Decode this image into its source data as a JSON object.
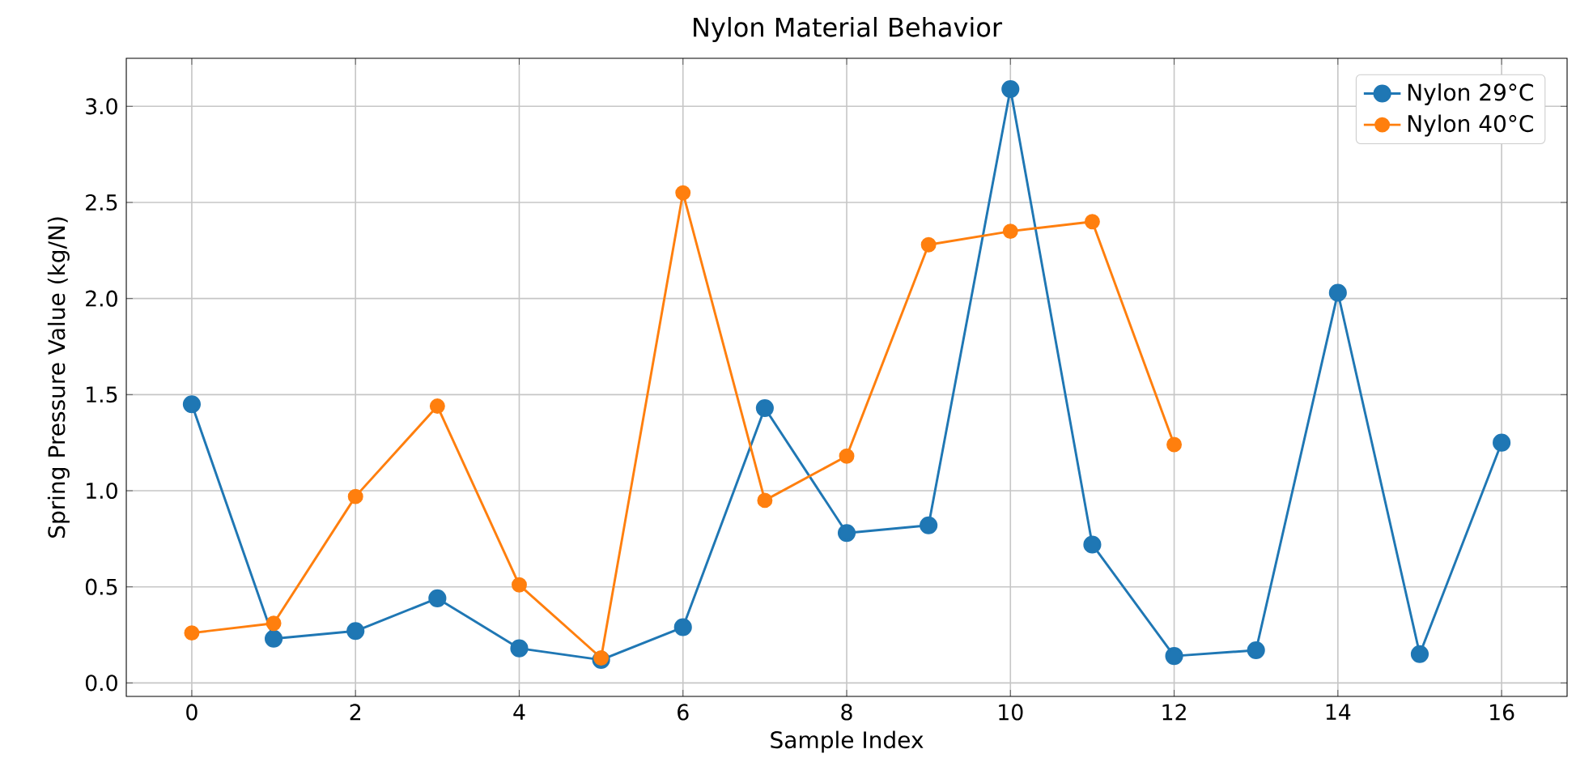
{
  "chart_data": {
    "type": "line",
    "title": "Nylon Material Behavior",
    "xlabel": "Sample Index",
    "ylabel": "Spring Pressure Value (kg/N)",
    "series": [
      {
        "name": "Nylon 29°C",
        "color": "#1f77b4",
        "x": [
          0,
          1,
          2,
          3,
          4,
          5,
          6,
          7,
          8,
          9,
          10,
          11,
          12,
          13,
          14,
          15,
          16
        ],
        "values": [
          1.45,
          0.23,
          0.27,
          0.44,
          0.18,
          0.12,
          0.29,
          1.43,
          0.78,
          0.82,
          3.09,
          0.72,
          0.14,
          0.17,
          2.03,
          0.15,
          1.25
        ]
      },
      {
        "name": "Nylon 40°C",
        "color": "#ff7f0e",
        "x": [
          0,
          1,
          2,
          3,
          4,
          5,
          6,
          7,
          8,
          9,
          10,
          11,
          12
        ],
        "values": [
          0.26,
          0.31,
          0.97,
          1.44,
          0.51,
          0.13,
          2.55,
          0.95,
          1.18,
          2.28,
          2.35,
          2.4,
          1.24
        ]
      }
    ],
    "xlim": [
      -0.8,
      16.8
    ],
    "ylim": [
      -0.07,
      3.25
    ],
    "xticks": [
      0,
      2,
      4,
      6,
      8,
      10,
      12,
      14,
      16
    ],
    "yticks": [
      {
        "value": 0,
        "label": "0.0"
      },
      {
        "value": 0.5,
        "label": "0.5"
      },
      {
        "value": 1,
        "label": "1.0"
      },
      {
        "value": 1.5,
        "label": "1.5"
      },
      {
        "value": 2,
        "label": "2.0"
      },
      {
        "value": 2.5,
        "label": "2.5"
      },
      {
        "value": 3,
        "label": "3.0"
      }
    ],
    "grid": true,
    "legend": "top right",
    "marker": "circle",
    "line_style": "solid"
  }
}
